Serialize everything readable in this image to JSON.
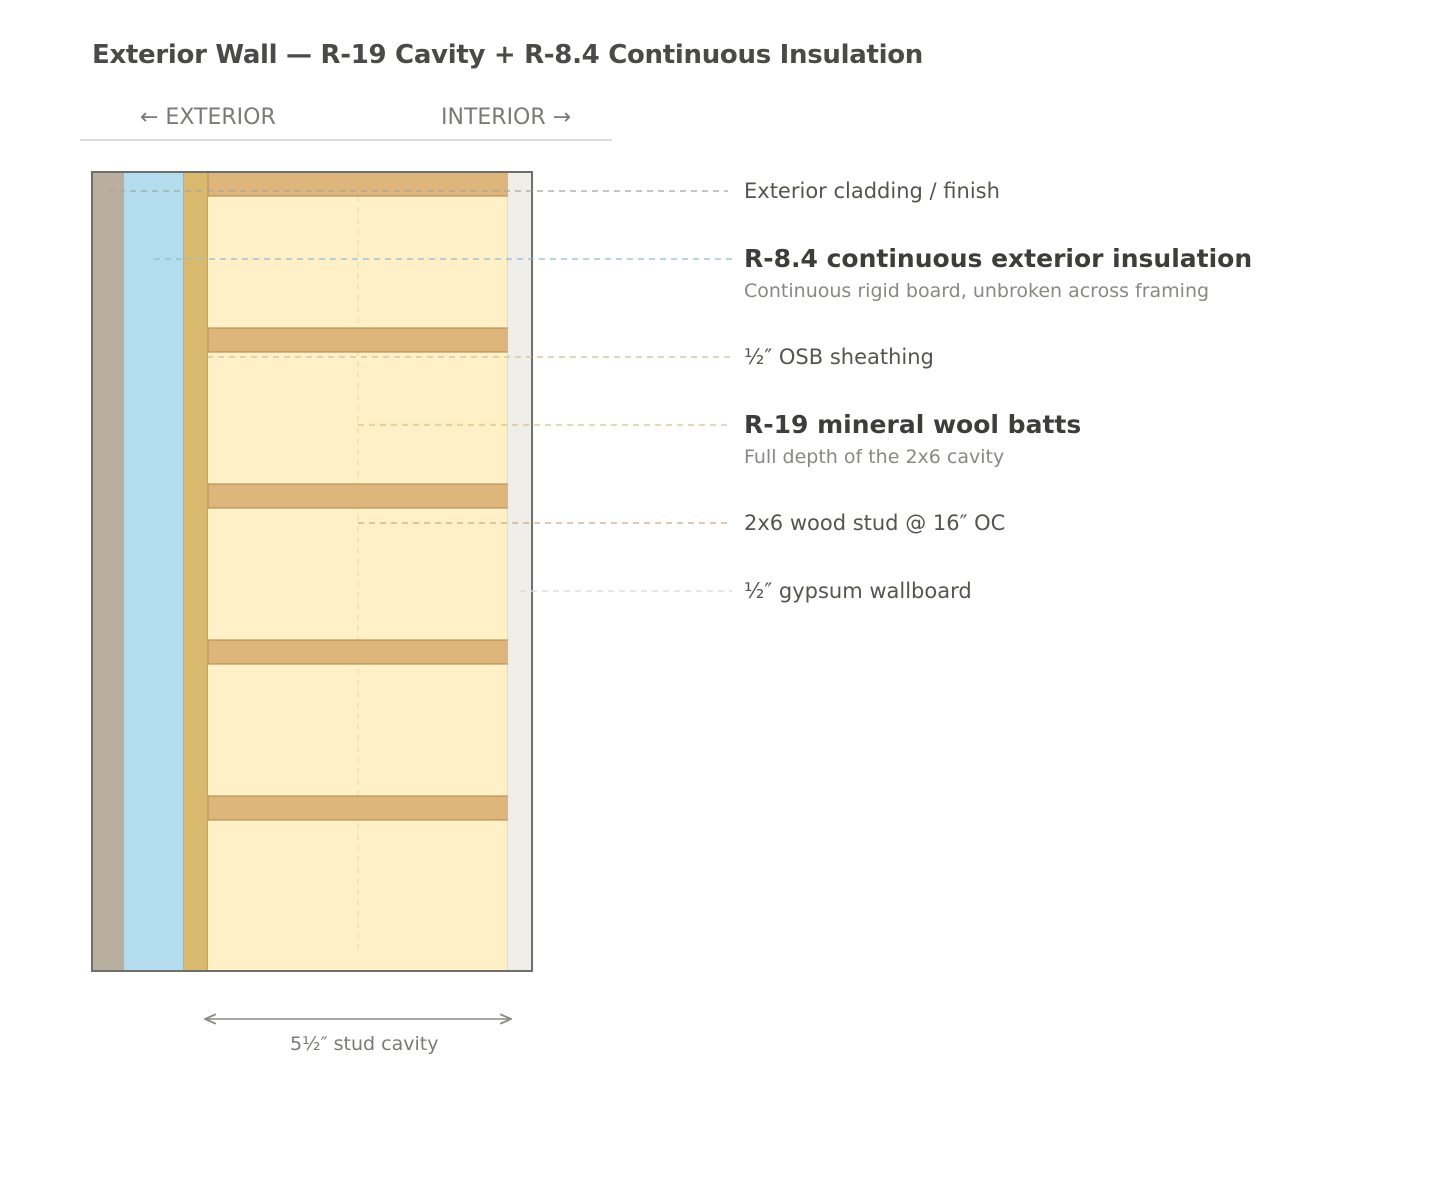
{
  "title": "Exterior Wall — R-19 Cavity + R-8.4 Continuous Insulation",
  "orientation": {
    "exterior": "← EXTERIOR",
    "interior": "INTERIOR →"
  },
  "layers": [
    {
      "id": "cladding",
      "label": "Exterior cladding / finish",
      "color": "#b8afa0"
    },
    {
      "id": "ci",
      "label": "R-8.4 continuous exterior insulation",
      "sublabel": "Continuous rigid board, unbroken across framing",
      "color": "#b4dcef"
    },
    {
      "id": "osb",
      "label": "½″ OSB sheathing",
      "color": "#d8b96e"
    },
    {
      "id": "batts",
      "label": "R-19 mineral wool batts",
      "sublabel": "Full depth of the 2x6 cavity",
      "color": "#fff0c8"
    },
    {
      "id": "stud",
      "label": "2x6 wood stud @ 16″ OC",
      "color": "#deb57a"
    },
    {
      "id": "gypsum",
      "label": "½″ gypsum wallboard",
      "color": "#f0eee8"
    }
  ],
  "dimension": {
    "label": "5½″ stud cavity"
  }
}
